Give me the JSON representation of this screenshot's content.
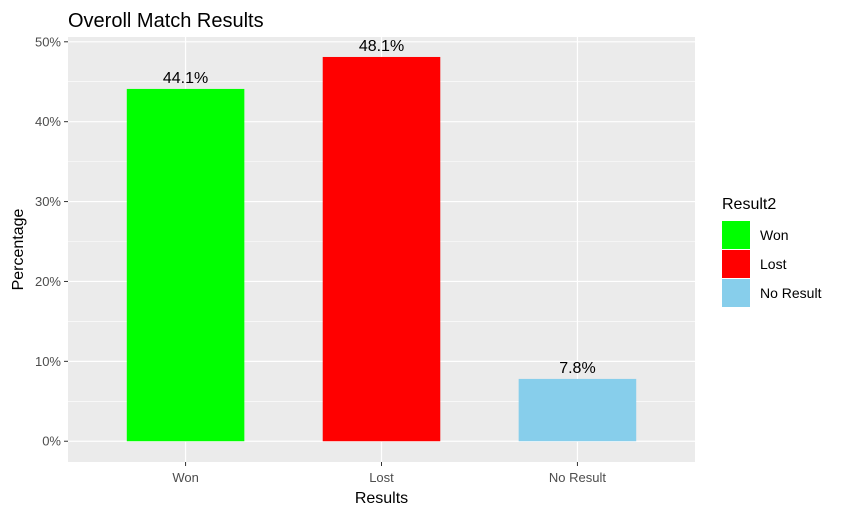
{
  "chart_data": {
    "type": "bar",
    "title": "Overoll Match Results",
    "xlabel": "Results",
    "ylabel": "Percentage",
    "categories": [
      "Won",
      "Lost",
      "No Result"
    ],
    "values": [
      44.1,
      48.1,
      7.8
    ],
    "value_labels": [
      "44.1%",
      "48.1%",
      "7.8%"
    ],
    "colors": [
      "#00ff00",
      "#ff0000",
      "#87ceeb"
    ],
    "ylim": [
      -2.6,
      50.6
    ],
    "yticks": [
      0,
      10,
      20,
      30,
      40,
      50
    ],
    "ytick_labels": [
      "0%",
      "10%",
      "20%",
      "30%",
      "40%",
      "50%"
    ],
    "grid": true,
    "panel_background": "#ebebeb",
    "legend": {
      "title": "Result2",
      "position": "right",
      "items": [
        "Won",
        "Lost",
        "No Result"
      ]
    }
  }
}
